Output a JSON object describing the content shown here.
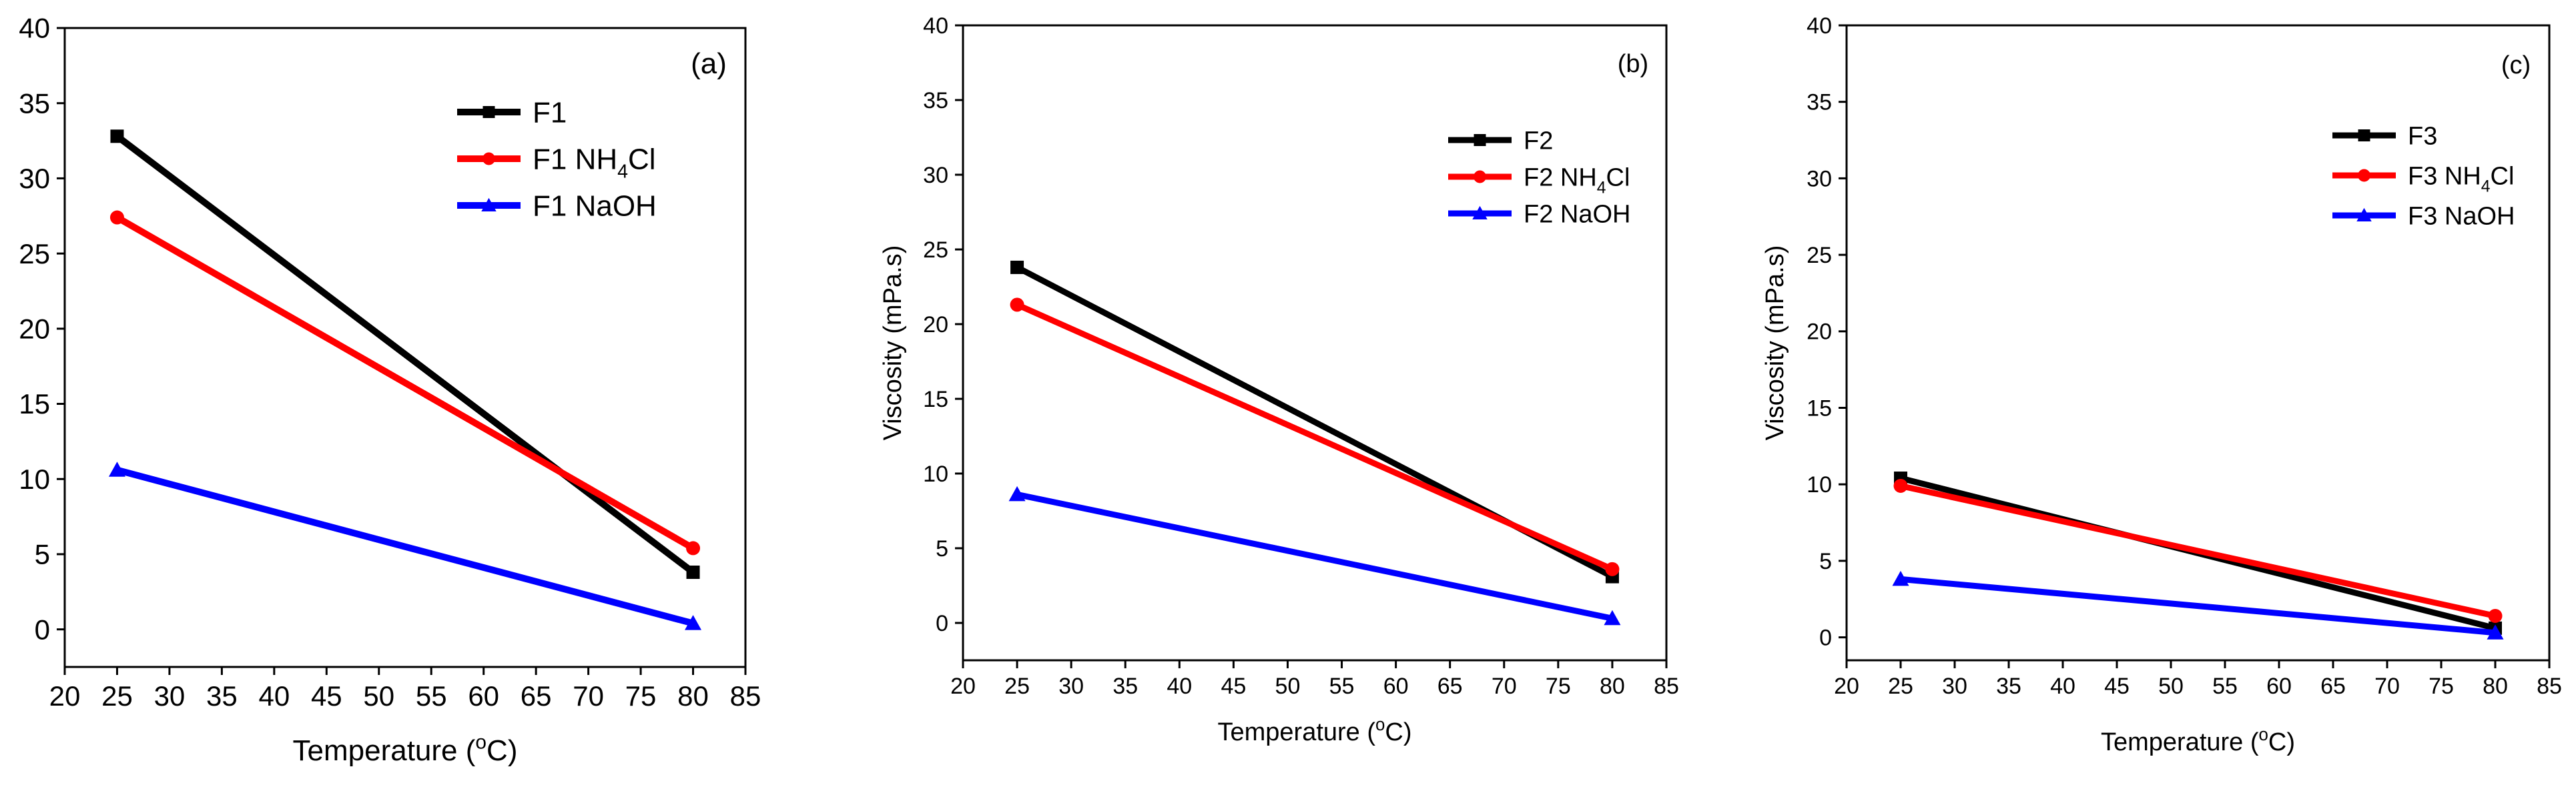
{
  "chart_data": [
    {
      "type": "line",
      "panel_label": "(a)",
      "xlabel": "Temperature",
      "xlabel_unit": "(°C)",
      "xlabel_unit_sup": "o",
      "xlabel_unit_tail": "C)",
      "ylabel": "",
      "xlim": [
        20,
        85
      ],
      "ylim": [
        -2.5,
        40
      ],
      "xticks": [
        20,
        25,
        30,
        35,
        40,
        45,
        50,
        55,
        60,
        65,
        70,
        75,
        80,
        85
      ],
      "yticks": [
        0,
        5,
        10,
        15,
        20,
        25,
        30,
        35,
        40
      ],
      "x": [
        25,
        80
      ],
      "series": [
        {
          "name": "F1",
          "name_pre": "F1",
          "color": "#000000",
          "marker": "square",
          "values": [
            32.8,
            3.8
          ]
        },
        {
          "name": "F1 NH4Cl",
          "name_pre": "F1 NH",
          "name_sub": "4",
          "name_post": "Cl",
          "color": "#ff0000",
          "marker": "circle",
          "values": [
            27.4,
            5.4
          ]
        },
        {
          "name": "F1 NaOH",
          "name_pre": "F1 NaOH",
          "color": "#0000ff",
          "marker": "triangle",
          "values": [
            10.6,
            0.4
          ]
        }
      ]
    },
    {
      "type": "line",
      "panel_label": "(b)",
      "xlabel": "Temperature",
      "xlabel_unit": "(°C)",
      "xlabel_unit_sup": "o",
      "xlabel_unit_tail": "C)",
      "ylabel": "Viscosity (mPa.s)",
      "xlim": [
        20,
        85
      ],
      "ylim": [
        -2.5,
        40
      ],
      "xticks": [
        20,
        25,
        30,
        35,
        40,
        45,
        50,
        55,
        60,
        65,
        70,
        75,
        80,
        85
      ],
      "yticks": [
        0,
        5,
        10,
        15,
        20,
        25,
        30,
        35,
        40
      ],
      "x": [
        25,
        80
      ],
      "series": [
        {
          "name": "F2",
          "name_pre": "F2",
          "color": "#000000",
          "marker": "square",
          "values": [
            23.8,
            3.1
          ]
        },
        {
          "name": "F2 NH4Cl",
          "name_pre": "F2 NH",
          "name_sub": "4",
          "name_post": "Cl",
          "color": "#ff0000",
          "marker": "circle",
          "values": [
            21.3,
            3.6
          ]
        },
        {
          "name": "F2 NaOH",
          "name_pre": "F2 NaOH",
          "color": "#0000ff",
          "marker": "triangle",
          "values": [
            8.6,
            0.3
          ]
        }
      ]
    },
    {
      "type": "line",
      "panel_label": "(c)",
      "xlabel": "Temperature",
      "xlabel_unit": "(°C)",
      "xlabel_unit_sup": "o",
      "xlabel_unit_tail": "C)",
      "ylabel": "Viscosity (mPa.s)",
      "xlim": [
        20,
        85
      ],
      "ylim": [
        -1.5,
        40
      ],
      "xticks": [
        20,
        25,
        30,
        35,
        40,
        45,
        50,
        55,
        60,
        65,
        70,
        75,
        80,
        85
      ],
      "yticks": [
        0,
        5,
        10,
        15,
        20,
        25,
        30,
        35,
        40
      ],
      "x": [
        25,
        80
      ],
      "series": [
        {
          "name": "F3",
          "name_pre": "F3",
          "color": "#000000",
          "marker": "square",
          "values": [
            10.4,
            0.6
          ]
        },
        {
          "name": "F3 NH4Cl",
          "name_pre": "F3 NH",
          "name_sub": "4",
          "name_post": "Cl",
          "color": "#ff0000",
          "marker": "circle",
          "values": [
            9.9,
            1.4
          ]
        },
        {
          "name": "F3 NaOH",
          "name_pre": "F3 NaOH",
          "color": "#0000ff",
          "marker": "triangle",
          "values": [
            3.8,
            0.3
          ]
        }
      ]
    }
  ]
}
